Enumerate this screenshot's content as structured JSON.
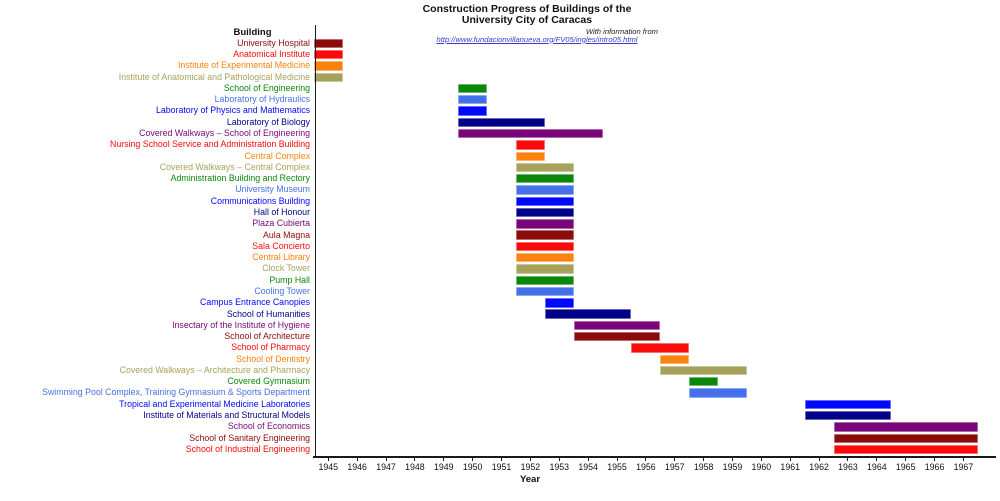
{
  "header": {
    "title_line1": "Construction Progress of Buildings of the",
    "title_line2": "University City of Caracas",
    "attribution": "With information from",
    "source_url": "http://www.fundacionvillanueva.org/FV05/ingles/intro05.html"
  },
  "axes": {
    "y_header": "Building",
    "x_label": "Year"
  },
  "chart_data": {
    "type": "bar",
    "variant": "gantt",
    "title": "Construction Progress of Buildings of the University City of Caracas",
    "subtitle": "With information from http://www.fundacionvillanueva.org/FV05/ingles/intro05.html",
    "xlabel": "Year",
    "ylabel": "Building",
    "grid": false,
    "legend": "none",
    "xlim": [
      1944.5,
      1968
    ],
    "x_ticks": [
      1945,
      1946,
      1947,
      1948,
      1949,
      1950,
      1951,
      1952,
      1953,
      1954,
      1955,
      1956,
      1957,
      1958,
      1959,
      1960,
      1961,
      1962,
      1963,
      1964,
      1965,
      1966,
      1967
    ],
    "palette": {
      "darkred": "#8b0b0b",
      "red": "#fa0a0a",
      "orange": "#fa820f",
      "khaki": "#a6a25c",
      "green": "#0b870b",
      "royalblue": "#4470ea",
      "blue": "#0008fc",
      "navy": "#000289",
      "purple": "#780678"
    },
    "rows": [
      {
        "label": "University Hospital",
        "color": "darkred",
        "start": 1945,
        "end": 1945
      },
      {
        "label": "Anatomical Institute",
        "color": "red",
        "start": 1945,
        "end": 1945
      },
      {
        "label": "Institute of Experimental Medicine",
        "color": "orange",
        "start": 1945,
        "end": 1945
      },
      {
        "label": "Institute of Anatomical and Pathological Medicine",
        "color": "khaki",
        "start": 1945,
        "end": 1945
      },
      {
        "label": "School of Engineering",
        "color": "green",
        "start": 1950,
        "end": 1950
      },
      {
        "label": "Laboratory of Hydraulics",
        "color": "royalblue",
        "start": 1950,
        "end": 1950
      },
      {
        "label": "Laboratory of Physics and Mathematics",
        "color": "blue",
        "start": 1950,
        "end": 1950
      },
      {
        "label": "Laboratory of Biology",
        "color": "navy",
        "start": 1950,
        "end": 1952
      },
      {
        "label": "Covered Walkways – School of Engineering",
        "color": "purple",
        "start": 1950,
        "end": 1954
      },
      {
        "label": "Nursing School Service and Administration Building",
        "color": "red",
        "start": 1952,
        "end": 1952
      },
      {
        "label": "Central Complex",
        "color": "orange",
        "start": 1952,
        "end": 1952
      },
      {
        "label": "Covered Walkways – Central Complex",
        "color": "khaki",
        "start": 1952,
        "end": 1953
      },
      {
        "label": "Administration Building and Rectory",
        "color": "green",
        "start": 1952,
        "end": 1953
      },
      {
        "label": "University Museum",
        "color": "royalblue",
        "start": 1952,
        "end": 1953
      },
      {
        "label": "Communications Building",
        "color": "blue",
        "start": 1952,
        "end": 1953
      },
      {
        "label": "Hall of Honour",
        "color": "navy",
        "start": 1952,
        "end": 1953
      },
      {
        "label": "Plaza Cubierta",
        "color": "purple",
        "start": 1952,
        "end": 1953
      },
      {
        "label": "Aula Magna",
        "color": "darkred",
        "start": 1952,
        "end": 1953
      },
      {
        "label": "Sala Concierto",
        "color": "red",
        "start": 1952,
        "end": 1953
      },
      {
        "label": "Central Library",
        "color": "orange",
        "start": 1952,
        "end": 1953
      },
      {
        "label": "Clock Tower",
        "color": "khaki",
        "start": 1952,
        "end": 1953
      },
      {
        "label": "Pump Hall",
        "color": "green",
        "start": 1952,
        "end": 1953
      },
      {
        "label": "Cooling Tower",
        "color": "royalblue",
        "start": 1952,
        "end": 1953
      },
      {
        "label": "Campus Entrance Canopies",
        "color": "blue",
        "start": 1953,
        "end": 1953
      },
      {
        "label": "School of Humanities",
        "color": "navy",
        "start": 1953,
        "end": 1955
      },
      {
        "label": "Insectary of the Institute of Hygiene",
        "color": "purple",
        "start": 1954,
        "end": 1956
      },
      {
        "label": "School of Architecture",
        "color": "darkred",
        "start": 1954,
        "end": 1956
      },
      {
        "label": "School of Pharmacy",
        "color": "red",
        "start": 1956,
        "end": 1957
      },
      {
        "label": "School of Dentistry",
        "color": "orange",
        "start": 1957,
        "end": 1957
      },
      {
        "label": "Covered Walkways – Architecture and Pharmacy",
        "color": "khaki",
        "start": 1957,
        "end": 1959
      },
      {
        "label": "Covered Gymnasium",
        "color": "green",
        "start": 1958,
        "end": 1958
      },
      {
        "label": "Swimming Pool Complex, Training Gymnasium & Sports Department",
        "color": "royalblue",
        "start": 1958,
        "end": 1959
      },
      {
        "label": "Tropical and Experimental Medicine Laboratories",
        "color": "blue",
        "start": 1962,
        "end": 1964
      },
      {
        "label": "Institute of Materials and Structural Models",
        "color": "navy",
        "start": 1962,
        "end": 1964
      },
      {
        "label": "School of Economics",
        "color": "purple",
        "start": 1963,
        "end": 1967
      },
      {
        "label": "School of Sanitary Engineering",
        "color": "darkred",
        "start": 1963,
        "end": 1967
      },
      {
        "label": "School of Industrial Engineering",
        "color": "red",
        "start": 1963,
        "end": 1967
      }
    ]
  }
}
